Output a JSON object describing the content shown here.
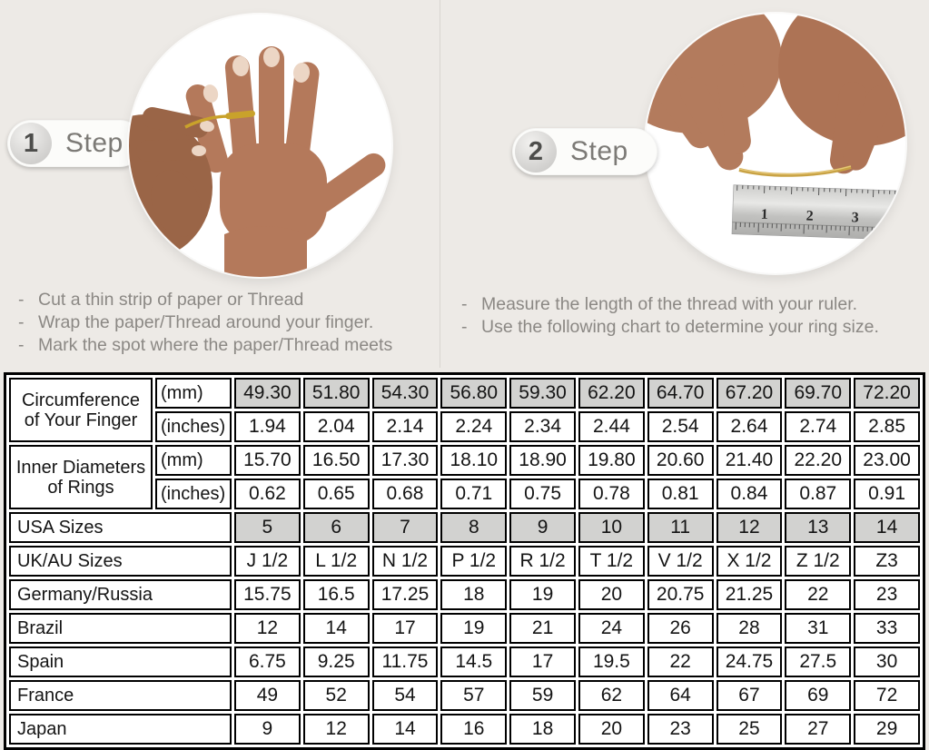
{
  "bullet_char": "-",
  "steps": [
    {
      "number": "1",
      "label": "Step",
      "instructions": [
        "Cut a thin strip of paper or Thread",
        "Wrap the paper/Thread around your finger.",
        "Mark the spot where the paper/Thread meets"
      ]
    },
    {
      "number": "2",
      "label": "Step",
      "instructions": [
        "Measure the length of the thread with your ruler.",
        "Use the following chart to determine your ring size."
      ]
    }
  ],
  "ruler": {
    "marks": [
      "1",
      "2",
      "3"
    ]
  },
  "table": {
    "row_groups": [
      {
        "label": "Circumference of Your Finger",
        "rows": [
          {
            "unit": "(mm)",
            "shaded": true,
            "values": [
              "49.30",
              "51.80",
              "54.30",
              "56.80",
              "59.30",
              "62.20",
              "64.70",
              "67.20",
              "69.70",
              "72.20"
            ]
          },
          {
            "unit": "(inches)",
            "shaded": false,
            "values": [
              "1.94",
              "2.04",
              "2.14",
              "2.24",
              "2.34",
              "2.44",
              "2.54",
              "2.64",
              "2.74",
              "2.85"
            ]
          }
        ]
      },
      {
        "label": "Inner Diameters of Rings",
        "rows": [
          {
            "unit": "(mm)",
            "shaded": false,
            "values": [
              "15.70",
              "16.50",
              "17.30",
              "18.10",
              "18.90",
              "19.80",
              "20.60",
              "21.40",
              "22.20",
              "23.00"
            ]
          },
          {
            "unit": "(inches)",
            "shaded": false,
            "values": [
              "0.62",
              "0.65",
              "0.68",
              "0.71",
              "0.75",
              "0.78",
              "0.81",
              "0.84",
              "0.87",
              "0.91"
            ]
          }
        ]
      }
    ],
    "simple_rows": [
      {
        "label": "USA Sizes",
        "shaded": true,
        "values": [
          "5",
          "6",
          "7",
          "8",
          "9",
          "10",
          "11",
          "12",
          "13",
          "14"
        ]
      },
      {
        "label": "UK/AU Sizes",
        "shaded": false,
        "values": [
          "J 1/2",
          "L 1/2",
          "N 1/2",
          "P 1/2",
          "R 1/2",
          "T 1/2",
          "V 1/2",
          "X 1/2",
          "Z 1/2",
          "Z3"
        ]
      },
      {
        "label": "Germany/Russia",
        "shaded": false,
        "values": [
          "15.75",
          "16.5",
          "17.25",
          "18",
          "19",
          "20",
          "20.75",
          "21.25",
          "22",
          "23"
        ]
      },
      {
        "label": "Brazil",
        "shaded": false,
        "values": [
          "12",
          "14",
          "17",
          "19",
          "21",
          "24",
          "26",
          "28",
          "31",
          "33"
        ]
      },
      {
        "label": "Spain",
        "shaded": false,
        "values": [
          "6.75",
          "9.25",
          "11.75",
          "14.5",
          "17",
          "19.5",
          "22",
          "24.75",
          "27.5",
          "30"
        ]
      },
      {
        "label": "France",
        "shaded": false,
        "values": [
          "49",
          "52",
          "54",
          "57",
          "59",
          "62",
          "64",
          "67",
          "69",
          "72"
        ]
      },
      {
        "label": "Japan",
        "shaded": false,
        "values": [
          "9",
          "12",
          "14",
          "16",
          "18",
          "20",
          "23",
          "25",
          "27",
          "29"
        ]
      }
    ]
  },
  "colors": {
    "background": "#EDEAE6",
    "cell_shaded": "#D2D2D0",
    "table_border": "#000000",
    "thread_gold": "#C9A22B",
    "skin_tone_main": "#B4795B",
    "skin_tone_helper": "#9A6547",
    "step_text": "#7C7A76",
    "instruction_text": "#8B8884"
  }
}
